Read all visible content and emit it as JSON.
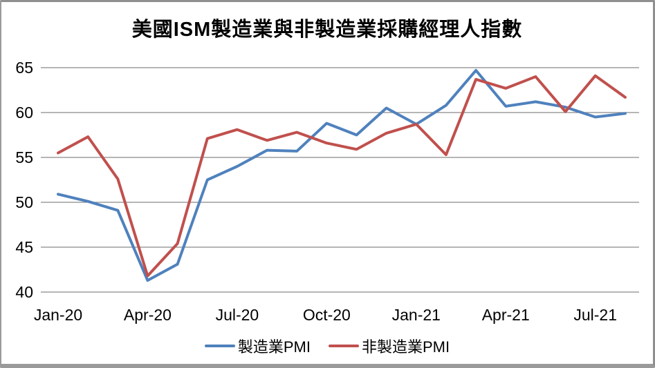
{
  "chart_data": {
    "type": "line",
    "title": "美國ISM製造業與非製造業採購經理人指數",
    "categories": [
      "Jan-20",
      "Feb-20",
      "Mar-20",
      "Apr-20",
      "May-20",
      "Jun-20",
      "Jul-20",
      "Aug-20",
      "Sep-20",
      "Oct-20",
      "Nov-20",
      "Dec-20",
      "Jan-21",
      "Feb-21",
      "Mar-21",
      "Apr-21",
      "May-21",
      "Jun-21",
      "Jul-21",
      "Aug-21"
    ],
    "x_tick_labels": [
      "Jan-20",
      "Apr-20",
      "Jul-20",
      "Oct-20",
      "Jan-21",
      "Apr-21",
      "Jul-21"
    ],
    "x_tick_indices": [
      0,
      3,
      6,
      9,
      12,
      15,
      18
    ],
    "yticks": [
      40,
      45,
      50,
      55,
      60,
      65
    ],
    "ylim": [
      40,
      65
    ],
    "grid": "horizontal",
    "legend_position": "bottom",
    "gridline_color": "#898989",
    "text_color": "#000000",
    "series": [
      {
        "name": "製造業PMI",
        "color": "#4F81BD",
        "values": [
          50.9,
          50.1,
          49.1,
          41.3,
          43.1,
          52.5,
          54.0,
          55.8,
          55.7,
          58.8,
          57.5,
          60.5,
          58.7,
          60.8,
          64.7,
          60.7,
          61.2,
          60.6,
          59.5,
          59.9
        ]
      },
      {
        "name": "非製造業PMI",
        "color": "#C0504D",
        "values": [
          55.5,
          57.3,
          52.6,
          41.8,
          45.4,
          57.1,
          58.1,
          56.9,
          57.8,
          56.6,
          55.9,
          57.7,
          58.7,
          55.3,
          63.7,
          62.7,
          64.0,
          60.1,
          64.1,
          61.7
        ]
      }
    ]
  }
}
